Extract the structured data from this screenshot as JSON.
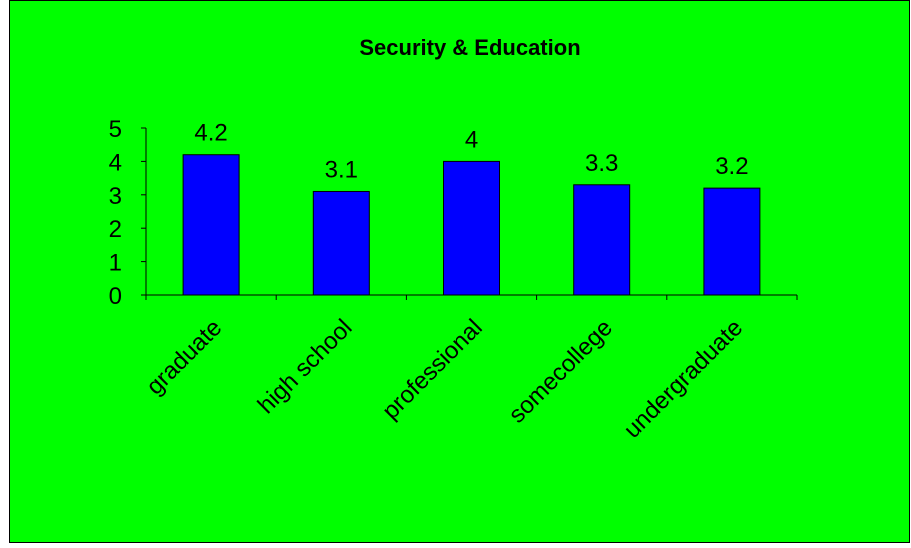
{
  "chart_data": {
    "type": "bar",
    "title": "Security & Education",
    "xlabel": "",
    "ylabel": "",
    "categories": [
      "graduate",
      "high school",
      "professional",
      "somecollege",
      "undergraduate"
    ],
    "values": [
      4.2,
      3.1,
      4,
      3.3,
      3.2
    ],
    "data_labels": [
      "4.2",
      "3.1",
      "4",
      "3.3",
      "3.2"
    ],
    "ylim": [
      0,
      5
    ],
    "y_ticks": [
      "0",
      "1",
      "2",
      "3",
      "4",
      "5"
    ],
    "grid": false,
    "legend": "none",
    "colors": {
      "background": "#00ff00",
      "bar_fill": "#0000ff",
      "bar_stroke": "#000000",
      "border": "#000000"
    }
  }
}
